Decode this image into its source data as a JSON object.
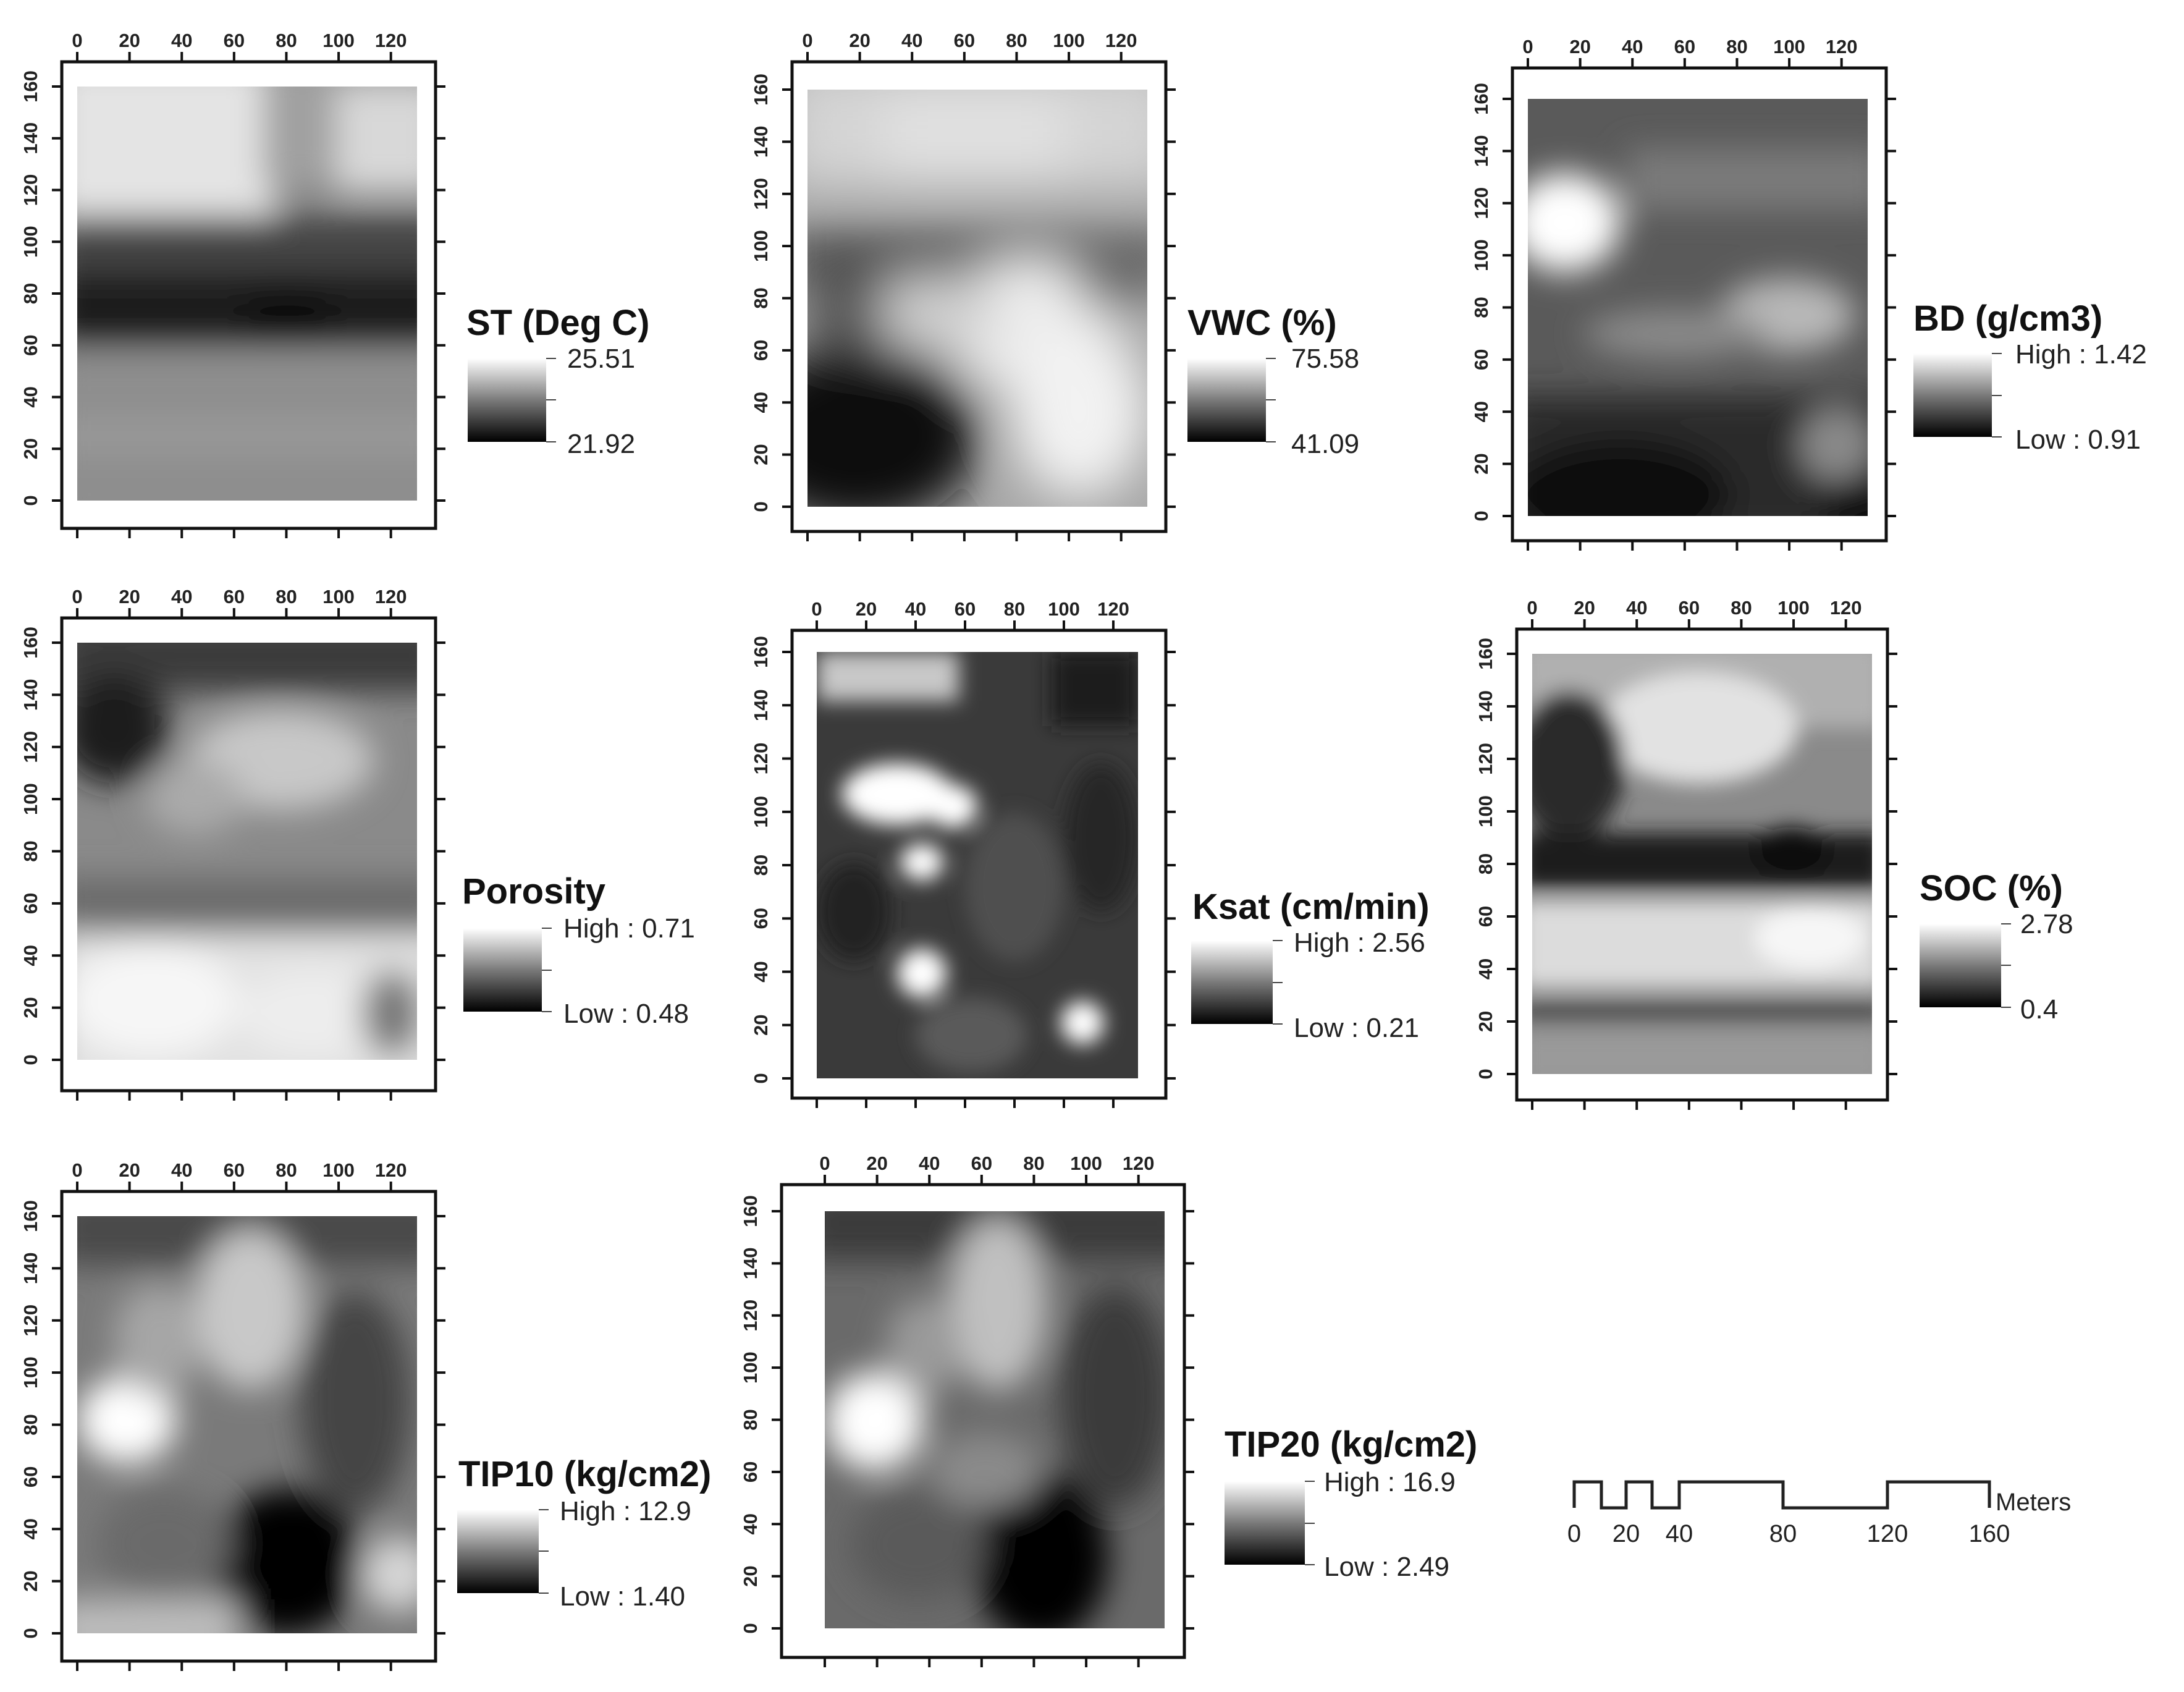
{
  "panels": [
    {
      "id": "st",
      "title": "ST (Deg C)",
      "high": "25.51",
      "low": "21.92"
    },
    {
      "id": "vwc",
      "title": "VWC (%)",
      "high": "75.58",
      "low": "41.09"
    },
    {
      "id": "bd",
      "title": "BD (g/cm3)",
      "high": "High : 1.42",
      "low": "Low : 0.91"
    },
    {
      "id": "porosity",
      "title": "Porosity",
      "high": "High : 0.71",
      "low": "Low : 0.48"
    },
    {
      "id": "ksat",
      "title": "Ksat (cm/min)",
      "high": "High : 2.56",
      "low": "Low : 0.21"
    },
    {
      "id": "soc",
      "title": "SOC (%)",
      "high": "2.78",
      "low": "0.4"
    },
    {
      "id": "tip10",
      "title": "TIP10 (kg/cm2)",
      "high": "High : 12.9",
      "low": "Low : 1.40"
    },
    {
      "id": "tip20",
      "title": "TIP20 (kg/cm2)",
      "high": "High : 16.9",
      "low": "Low : 2.49"
    }
  ],
  "axes": {
    "x_ticks": [
      "0",
      "20",
      "40",
      "60",
      "80",
      "100",
      "120"
    ],
    "y_ticks": [
      "0",
      "20",
      "40",
      "60",
      "80",
      "100",
      "120",
      "140",
      "160"
    ],
    "x_range": [
      0,
      130
    ],
    "y_range": [
      0,
      160
    ]
  },
  "scale_bar": {
    "labels": [
      "0",
      "20",
      "40",
      "80",
      "120",
      "160"
    ],
    "unit": "Meters"
  },
  "colors": {
    "ramp_high": "#ffffff",
    "ramp_low": "#000000",
    "frame": "#111111"
  }
}
